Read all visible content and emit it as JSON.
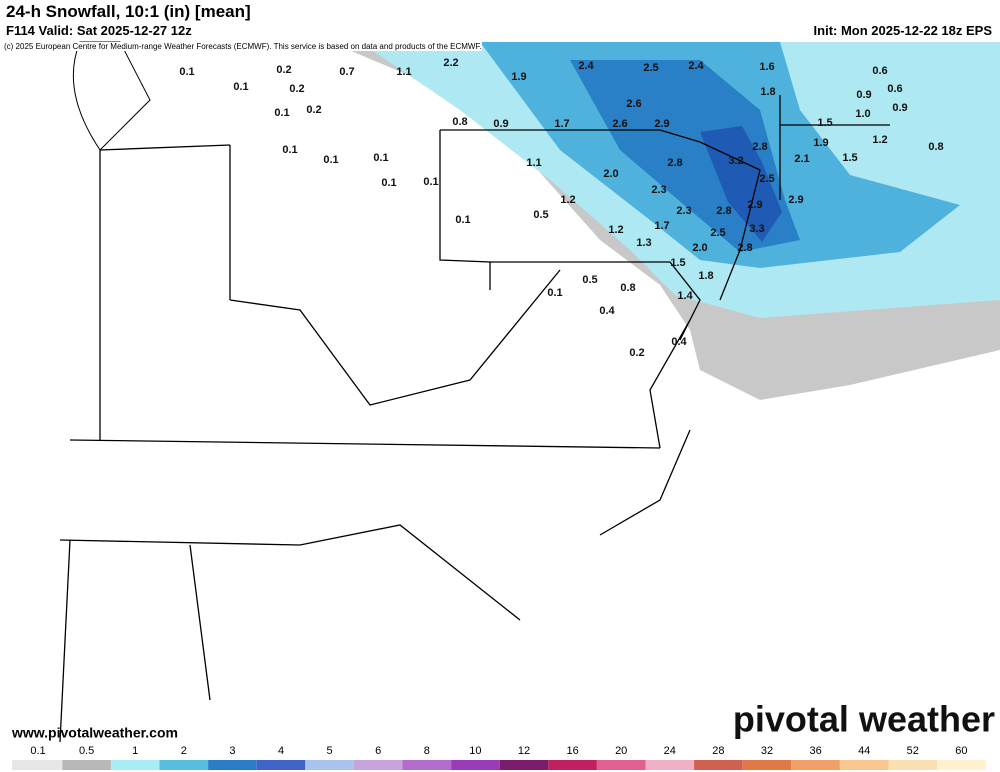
{
  "header": {
    "title": "24-h Snowfall, 10:1 (in) [mean]",
    "subtitle": "F114 Valid: Sat 2025-12-27 12z",
    "copyright": "(c) 2025 European Centre for Medium-range Weather Forecasts (ECMWF). This service is based on data and products of the ECMWF.",
    "init": "Init: Mon 2025-12-22 18z EPS"
  },
  "map_labels": [
    0.1,
    0.1,
    0.2,
    0.2,
    0.1,
    0.2,
    0.7,
    1.1,
    2.2,
    1.9,
    2.4,
    2.5,
    2.4,
    1.6,
    1.8,
    0.6,
    0.9,
    0.6,
    {
      "value": 1,
      "label": "1.0"
    },
    0.9,
    2.6,
    2.6,
    2.9,
    1.5,
    1.9,
    1.2,
    0.8,
    0.9,
    1.7,
    2.8,
    2.1,
    1.5,
    0.8,
    0.1,
    0.1,
    0.1,
    1.1,
    2.8,
    3.2,
    0.1,
    0.1,
    {
      "value": 2,
      "label": "2.0"
    },
    2.3,
    2.5,
    1.2,
    0.5,
    0.1,
    2.9,
    2.9,
    2.3,
    2.8,
    1.2,
    1.7,
    2.5,
    3.3,
    1.3,
    {
      "value": 2,
      "label": "2.0"
    },
    2.8,
    1.5,
    1.8,
    0.5,
    0.1,
    0.8,
    1.4,
    0.4,
    0.4,
    0.2
  ],
  "footer": {
    "url": "www.pivotalweather.com",
    "brand": "pivotal weather"
  },
  "colorbar": {
    "ticks": [
      0.1,
      0.5,
      1,
      2,
      3,
      4,
      5,
      6,
      8,
      10,
      12,
      16,
      20,
      24,
      28,
      32,
      36,
      44,
      52,
      60
    ],
    "colors": [
      "#e6e6e6",
      "#b8b8b8",
      "#a8ecf4",
      "#58bede",
      "#2a7ec8",
      "#3f63c6",
      "#a9c4ec",
      "#c8a4dc",
      "#b46ccc",
      "#9a3cb8",
      "#7a1c6c",
      "#c02060",
      "#e06090",
      "#f0b0c8",
      "#d06050",
      "#e07848",
      "#f0a068",
      "#f8c890",
      "#fae0b0",
      "#fff0d0"
    ]
  }
}
